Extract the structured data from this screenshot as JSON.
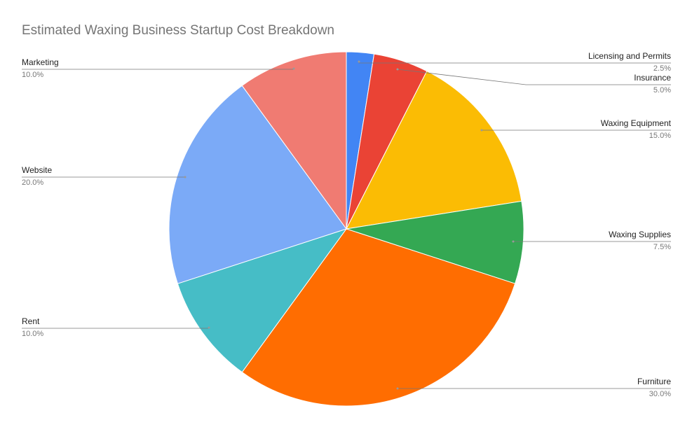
{
  "chart_data": {
    "type": "pie",
    "title": "Estimated Waxing Business Startup Cost Breakdown",
    "categories": [
      "Licensing and Permits",
      "Insurance",
      "Waxing Equipment",
      "Waxing Supplies",
      "Furniture",
      "Rent",
      "Website",
      "Marketing"
    ],
    "values": [
      2.5,
      5,
      15,
      7.5,
      30,
      10,
      20,
      10
    ],
    "value_labels": [
      "2.5%",
      "5.0%",
      "15.0%",
      "7.5%",
      "30.0%",
      "10.0%",
      "20.0%",
      "10.0%"
    ],
    "colors": [
      "#4285f4",
      "#ea4335",
      "#fbbc04",
      "#34a853",
      "#ff6d01",
      "#46bdc6",
      "#7baaf7",
      "#f07b72"
    ]
  }
}
